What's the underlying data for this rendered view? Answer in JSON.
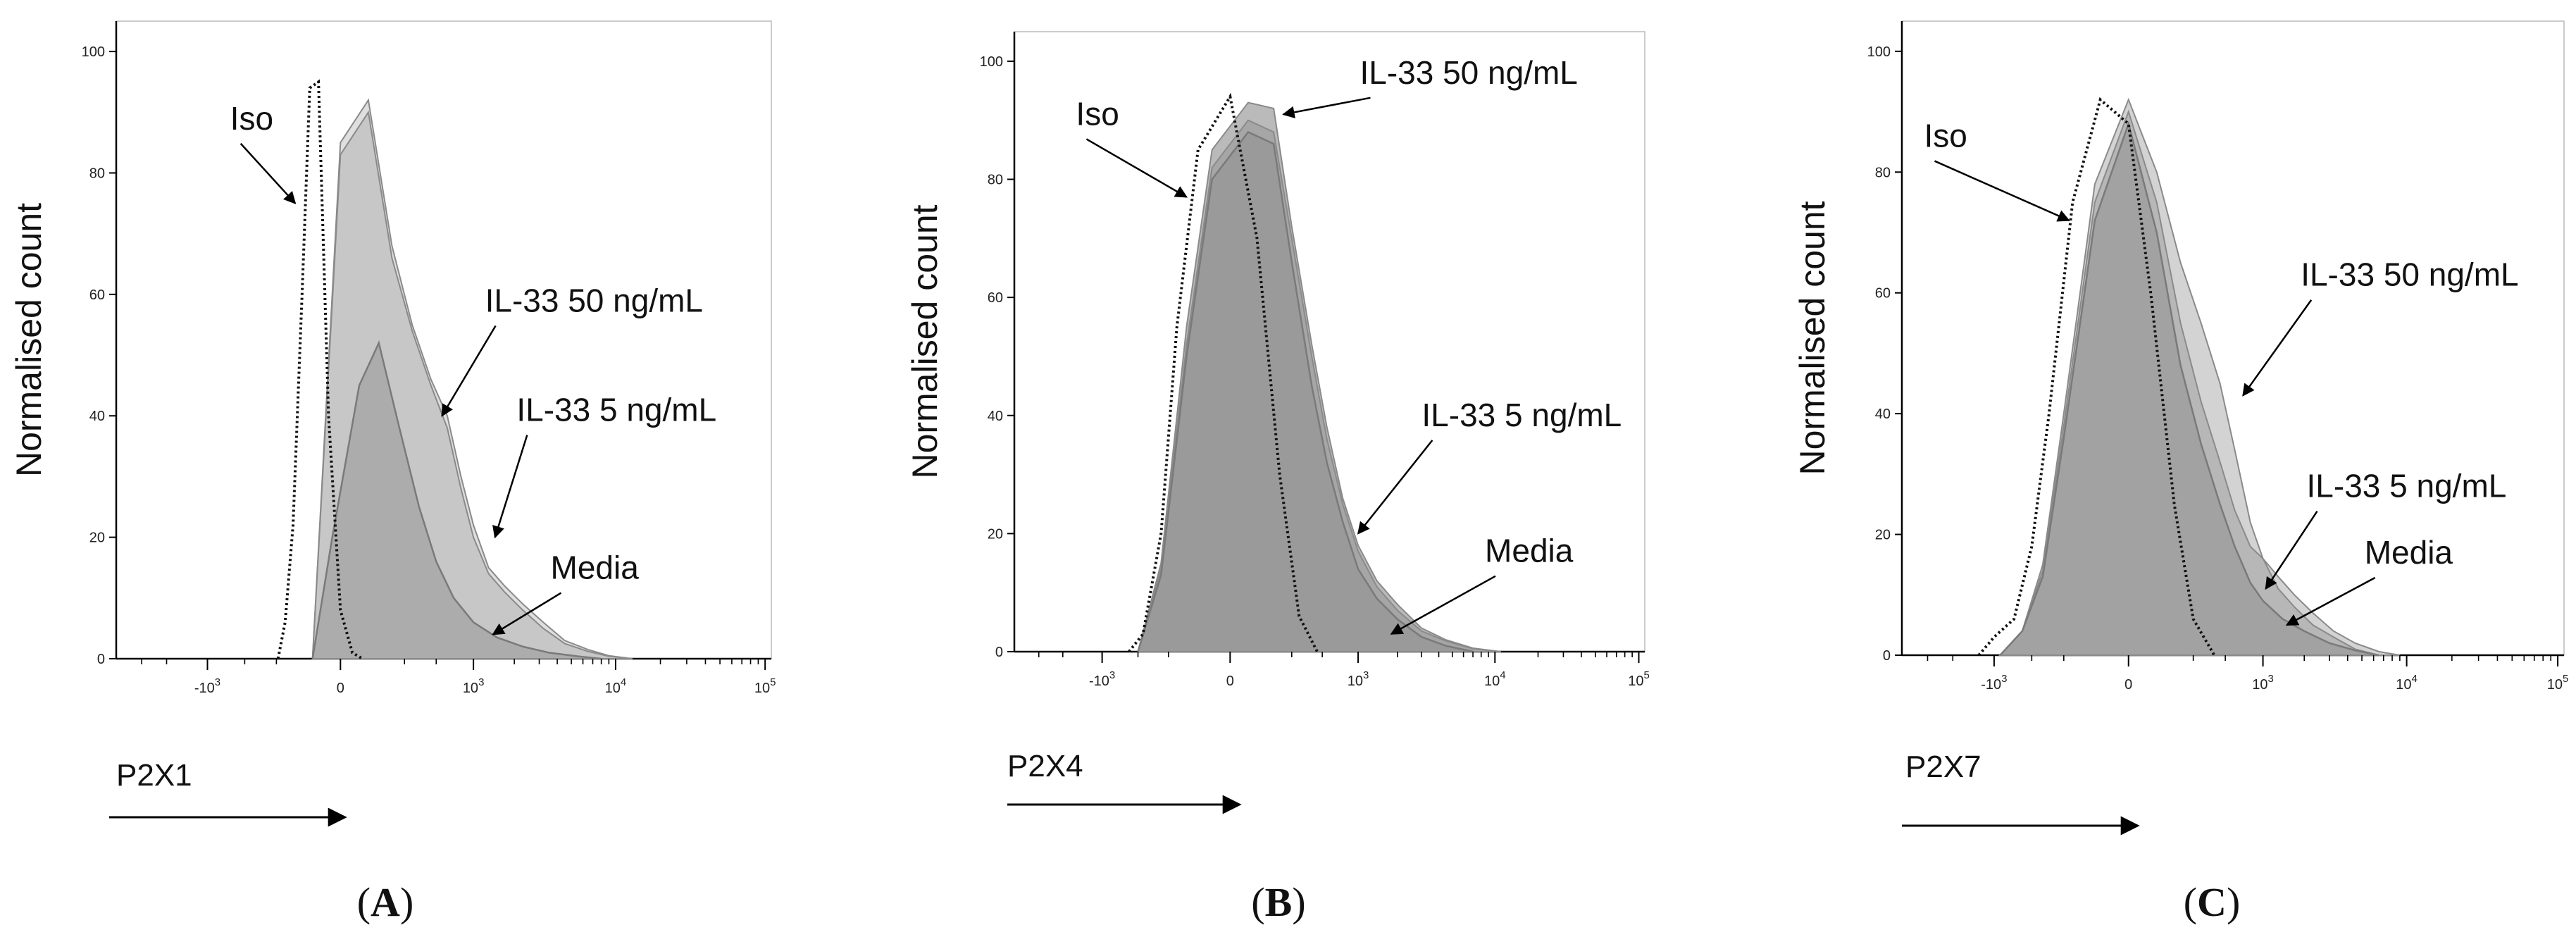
{
  "figure": {
    "panel_labels": [
      {
        "open": "(",
        "letter": "A",
        "close": ")"
      },
      {
        "open": "(",
        "letter": "B",
        "close": ")"
      },
      {
        "open": "(",
        "letter": "C",
        "close": ")"
      }
    ]
  },
  "chart_data": [
    {
      "type": "area",
      "panel": "A",
      "xlabel": "P2X1",
      "ylabel": "Normalised count",
      "ylim": [
        0,
        105
      ],
      "yticks": [
        "0",
        "20",
        "40",
        "60",
        "80",
        "100"
      ],
      "xticks": [
        {
          "base": "-10",
          "exp": "3",
          "value": -1000
        },
        {
          "base": "0",
          "exp": "",
          "value": 0
        },
        {
          "base": "10",
          "exp": "3",
          "value": 1000
        },
        {
          "base": "10",
          "exp": "4",
          "value": 10000
        },
        {
          "base": "10",
          "exp": "5",
          "value": 100000
        }
      ],
      "grid": false,
      "colors": {
        "il33_50": "#dcdcdc",
        "il33_5": "#c4c4c4",
        "media": "#a9a9a9",
        "iso": "#111111"
      },
      "series": [
        {
          "key": "il33_50",
          "x": [
            -80,
            0,
            80,
            180,
            300,
            450,
            620,
            800,
            1000,
            1300,
            1700,
            2300,
            3200,
            4500,
            6500,
            9000,
            13000
          ],
          "y": [
            0,
            85,
            92,
            68,
            55,
            46,
            40,
            30,
            22,
            15,
            12,
            9,
            6,
            3,
            1.5,
            0.5,
            0
          ]
        },
        {
          "key": "il33_5",
          "x": [
            -80,
            0,
            80,
            180,
            300,
            450,
            620,
            800,
            1000,
            1300,
            1700,
            2300,
            3200,
            4500,
            6500,
            9000,
            13000
          ],
          "y": [
            0,
            83,
            90,
            66,
            54,
            45,
            38,
            28,
            20,
            14,
            11,
            8,
            5,
            2.5,
            1.2,
            0.4,
            0
          ]
        },
        {
          "key": "media",
          "x": [
            -80,
            -20,
            50,
            120,
            220,
            350,
            500,
            700,
            1000,
            1500,
            2300,
            3500,
            5500,
            8000
          ],
          "y": [
            0,
            20,
            45,
            52,
            38,
            25,
            16,
            10,
            6,
            3.5,
            2,
            1,
            0.4,
            0
          ]
        },
        {
          "key": "iso",
          "x": [
            -240,
            -200,
            -160,
            -120,
            -90,
            -60,
            -30,
            0,
            30,
            60
          ],
          "y": [
            0,
            6,
            22,
            60,
            94,
            95,
            40,
            8,
            1,
            0
          ]
        }
      ],
      "annotations": [
        {
          "text": "Iso",
          "ax": -620,
          "ay": 86,
          "tx": -150,
          "ty": 75
        },
        {
          "text": "IL-33 50 ng/mL",
          "ax": 1300,
          "ay": 56,
          "tx": 560,
          "ty": 40
        },
        {
          "text": "IL-33 5 ng/mL",
          "ax": 2200,
          "ay": 38,
          "tx": 1450,
          "ty": 20
        },
        {
          "text": "Media",
          "ax": 3800,
          "ay": 12,
          "tx": 1400,
          "ty": 4
        }
      ]
    },
    {
      "type": "area",
      "panel": "B",
      "xlabel": "P2X4",
      "ylabel": "Normalised count",
      "ylim": [
        0,
        105
      ],
      "yticks": [
        "0",
        "20",
        "40",
        "60",
        "80",
        "100"
      ],
      "xticks": [
        {
          "base": "-10",
          "exp": "3",
          "value": -1000
        },
        {
          "base": "0",
          "exp": "",
          "value": 0
        },
        {
          "base": "10",
          "exp": "3",
          "value": 1000
        },
        {
          "base": "10",
          "exp": "4",
          "value": 10000
        },
        {
          "base": "10",
          "exp": "5",
          "value": 100000
        }
      ],
      "grid": false,
      "colors": {
        "il33_50": "#b4b4b4",
        "il33_5": "#a4a4a4",
        "media": "#999999",
        "iso": "#111111"
      },
      "series": [
        {
          "key": "il33_50",
          "x": [
            -500,
            -300,
            -150,
            -50,
            50,
            150,
            250,
            400,
            550,
            750,
            1000,
            1400,
            2000,
            3000,
            4500,
            7000,
            11000
          ],
          "y": [
            0,
            15,
            55,
            85,
            93,
            92,
            72,
            52,
            38,
            26,
            18,
            12,
            8,
            4,
            2,
            0.6,
            0
          ]
        },
        {
          "key": "il33_5",
          "x": [
            -500,
            -300,
            -150,
            -50,
            50,
            150,
            250,
            400,
            550,
            750,
            1000,
            1400,
            2000,
            3000,
            4500,
            7000,
            11000
          ],
          "y": [
            0,
            14,
            52,
            82,
            90,
            88,
            70,
            50,
            36,
            25,
            17,
            11,
            7,
            3.5,
            1.8,
            0.5,
            0
          ]
        },
        {
          "key": "media",
          "x": [
            -500,
            -300,
            -150,
            -50,
            50,
            150,
            250,
            400,
            550,
            750,
            1000,
            1400,
            2000,
            3000,
            4500,
            7000
          ],
          "y": [
            0,
            13,
            50,
            80,
            88,
            86,
            66,
            45,
            32,
            22,
            14,
            9,
            5.5,
            2.5,
            1,
            0
          ]
        },
        {
          "key": "iso",
          "x": [
            -600,
            -450,
            -300,
            -200,
            -100,
            0,
            80,
            180,
            300,
            450
          ],
          "y": [
            0,
            3,
            20,
            55,
            85,
            94,
            70,
            30,
            6,
            0
          ]
        }
      ],
      "annotations": [
        {
          "text": "Iso",
          "ax": -1500,
          "ay": 88,
          "tx": -150,
          "ty": 77
        },
        {
          "text": "IL-33 50 ng/mL",
          "ax": 1100,
          "ay": 95,
          "tx": 200,
          "ty": 91
        },
        {
          "text": "IL-33 5 ng/mL",
          "ax": 3200,
          "ay": 37,
          "tx": 1000,
          "ty": 20
        },
        {
          "text": "Media",
          "ax": 9000,
          "ay": 14,
          "tx": 1800,
          "ty": 3
        }
      ]
    },
    {
      "type": "area",
      "panel": "C",
      "xlabel": "P2X7",
      "ylabel": "Normalised count",
      "ylim": [
        0,
        105
      ],
      "yticks": [
        "0",
        "20",
        "40",
        "60",
        "80",
        "100"
      ],
      "xticks": [
        {
          "base": "-10",
          "exp": "3",
          "value": -1000
        },
        {
          "base": "0",
          "exp": "",
          "value": 0
        },
        {
          "base": "10",
          "exp": "3",
          "value": 1000
        },
        {
          "base": "10",
          "exp": "4",
          "value": 10000
        },
        {
          "base": "10",
          "exp": "5",
          "value": 100000
        }
      ],
      "grid": false,
      "colors": {
        "il33_50": "#cfcfcf",
        "il33_5": "#b4b4b4",
        "media": "#9f9f9f",
        "iso": "#111111"
      },
      "series": [
        {
          "key": "il33_50",
          "x": [
            -900,
            -600,
            -400,
            -250,
            -100,
            0,
            80,
            180,
            300,
            450,
            600,
            800,
            1000,
            1300,
            1700,
            2300,
            3200,
            4500,
            6500,
            9000
          ],
          "y": [
            0,
            4,
            15,
            40,
            78,
            92,
            80,
            65,
            55,
            45,
            34,
            22,
            16,
            13,
            10,
            7,
            4,
            2,
            0.6,
            0
          ]
        },
        {
          "key": "il33_5",
          "x": [
            -900,
            -600,
            -400,
            -250,
            -100,
            0,
            80,
            180,
            300,
            450,
            600,
            800,
            1000,
            1300,
            1700,
            2300,
            3200,
            4500,
            6500
          ],
          "y": [
            0,
            4,
            14,
            38,
            75,
            90,
            75,
            55,
            42,
            32,
            24,
            18,
            16,
            11,
            8,
            5,
            3,
            1,
            0
          ]
        },
        {
          "key": "media",
          "x": [
            -900,
            -600,
            -400,
            -250,
            -100,
            0,
            80,
            180,
            300,
            450,
            600,
            800,
            1000,
            1400,
            2000,
            3000,
            4500,
            6500
          ],
          "y": [
            0,
            4,
            13,
            36,
            72,
            88,
            70,
            48,
            35,
            25,
            18,
            12,
            9,
            6,
            4,
            2,
            0.8,
            0
          ]
        },
        {
          "key": "iso",
          "x": [
            -1300,
            -1000,
            -700,
            -500,
            -350,
            -200,
            -80,
            0,
            60,
            150,
            250,
            400
          ],
          "y": [
            0,
            3,
            6,
            18,
            40,
            75,
            92,
            88,
            60,
            25,
            6,
            0
          ]
        }
      ],
      "annotations": [
        {
          "text": "Iso",
          "ax": -3000,
          "ay": 83,
          "tx": -220,
          "ty": 72
        },
        {
          "text": "IL-33 50 ng/mL",
          "ax": 2000,
          "ay": 60,
          "tx": 700,
          "ty": 43
        },
        {
          "text": "IL-33 5 ng/mL",
          "ax": 2200,
          "ay": 25,
          "tx": 1050,
          "ty": 11
        },
        {
          "text": "Media",
          "ax": 5500,
          "ay": 14,
          "tx": 1500,
          "ty": 5
        }
      ]
    }
  ]
}
